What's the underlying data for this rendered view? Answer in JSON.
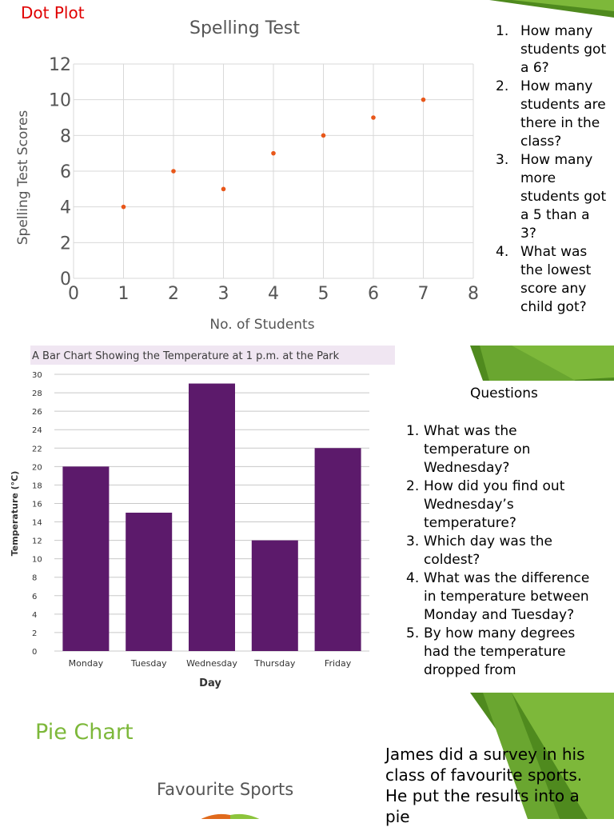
{
  "slide1": {
    "heading": "Dot Plot",
    "questions": [
      {
        "num": "1.",
        "text": "How many students got a 6?"
      },
      {
        "num": "2.",
        "text": "How many students are there in the class?"
      },
      {
        "num": "3.",
        "text": "How many more students got a 5 than a 3?"
      },
      {
        "num": "4.",
        "text": "What was the lowest score any child got?"
      }
    ]
  },
  "slide2": {
    "heading": "Questions",
    "questions": [
      {
        "num": "1.",
        "text": "What was the temperature on Wednesday?"
      },
      {
        "num": "2.",
        "text": "How did you find out Wednesday’s temperature?"
      },
      {
        "num": "3.",
        "text": "Which day was the coldest?"
      },
      {
        "num": "4.",
        "text": "What was the difference in temperature between Monday and Tuesday?"
      },
      {
        "num": "5.",
        "text": "By how many degrees had the temperature dropped from"
      }
    ]
  },
  "slide3": {
    "heading": "Pie Chart",
    "pie_title": "Favourite Sports",
    "text": "James did a survey in his class of favourite sports. He put the results into a pie"
  },
  "colors": {
    "accent_green": "#7db83a",
    "dark_green": "#4f8a1e",
    "scatter_point": "#e8571a",
    "bar_purple": "#5c1a6b",
    "pie_orange": "#e06a1c"
  },
  "chart_data": [
    {
      "type": "scatter",
      "title": "Spelling Test",
      "xlabel": "No. of Students",
      "ylabel": "Spelling Test Scores",
      "x": [
        1,
        2,
        3,
        4,
        5,
        6,
        7
      ],
      "y": [
        4,
        6,
        5,
        7,
        8,
        9,
        10
      ],
      "xlim": [
        0,
        8
      ],
      "ylim": [
        0,
        12
      ],
      "xticks": [
        "0",
        "1",
        "2",
        "3",
        "4",
        "5",
        "6",
        "7",
        "8"
      ],
      "yticks": [
        "0",
        "2",
        "4",
        "6",
        "8",
        "10",
        "12"
      ],
      "grid": true
    },
    {
      "type": "bar",
      "title": "A Bar Chart Showing the Temperature at 1 p.m. at the Park",
      "xlabel": "Day",
      "ylabel": "Temperature (°C)",
      "categories": [
        "Monday",
        "Tuesday",
        "Wednesday",
        "Thursday",
        "Friday"
      ],
      "values": [
        20,
        15,
        29,
        12,
        22
      ],
      "ylim": [
        0,
        30
      ],
      "yticks": [
        "0",
        "2",
        "4",
        "6",
        "8",
        "10",
        "12",
        "14",
        "16",
        "18",
        "20",
        "22",
        "24",
        "26",
        "28",
        "30"
      ],
      "grid": true
    },
    {
      "type": "pie",
      "title": "Favourite Sports"
    }
  ]
}
